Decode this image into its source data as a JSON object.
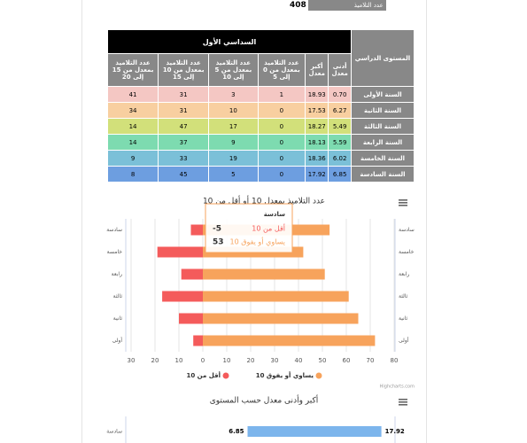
{
  "summary": {
    "label": "عدد التلاميذ",
    "value": "408"
  },
  "table": {
    "group_header": "السداسي الأول",
    "level_header": "المستوى الدراسي",
    "columns": [
      "أدنى معدل",
      "أكبر معدل",
      "عدد التلاميذ بمعدل من 0 إلى 5",
      "عدد التلاميذ بمعدل من 5 إلى 10",
      "عدد التلاميذ بمعدل من 10 إلى 15",
      "عدد التلاميذ بمعدل من 15 إلى 20"
    ],
    "rows": [
      {
        "level": "السنة الأولى",
        "cells": [
          "0.70",
          "18.93",
          "1",
          "3",
          "31",
          "41"
        ]
      },
      {
        "level": "السنة الثانية",
        "cells": [
          "6.27",
          "17.53",
          "0",
          "10",
          "31",
          "34"
        ]
      },
      {
        "level": "السنة الثالثة",
        "cells": [
          "5.49",
          "18.27",
          "0",
          "17",
          "47",
          "14"
        ]
      },
      {
        "level": "السنة الرابعة",
        "cells": [
          "5.59",
          "18.13",
          "0",
          "9",
          "37",
          "14"
        ]
      },
      {
        "level": "السنة الخامسة",
        "cells": [
          "6.02",
          "18.36",
          "0",
          "19",
          "33",
          "9"
        ]
      },
      {
        "level": "السنة السادسة",
        "cells": [
          "6.85",
          "17.92",
          "0",
          "5",
          "45",
          "8"
        ]
      }
    ]
  },
  "chart_data": [
    {
      "type": "bar",
      "title": "عدد التلاميذ بمعدل 10 أو أقل من 10",
      "credits": "Highcharts.com",
      "categories": [
        "سادسة",
        "خامسة",
        "رابعة",
        "ثالثة",
        "ثانية",
        "أولى"
      ],
      "series": [
        {
          "name": "أقل من 10",
          "color": "#f45b5b",
          "values": [
            -5,
            -19,
            -9,
            -17,
            -10,
            -4
          ]
        },
        {
          "name": "يساوي أو يفوق 10",
          "color": "#f7a35c",
          "values": [
            53,
            42,
            51,
            61,
            65,
            72
          ]
        }
      ],
      "xlim": [
        -30,
        80
      ],
      "xticks": [
        {
          "value": -30,
          "label": "30"
        },
        {
          "value": -20,
          "label": "20"
        },
        {
          "value": -10,
          "label": "10"
        },
        0,
        10,
        20,
        30,
        40,
        50,
        60,
        70,
        80
      ],
      "grid": true
    },
    {
      "type": "columnrange",
      "title": "أكبر وأدنى معدل حسب المستوى",
      "categories": [
        "سادسة"
      ],
      "low": [
        6.85
      ],
      "high": [
        17.92
      ],
      "color": "#7cb5ec",
      "xlim": [
        0,
        20
      ]
    }
  ]
}
